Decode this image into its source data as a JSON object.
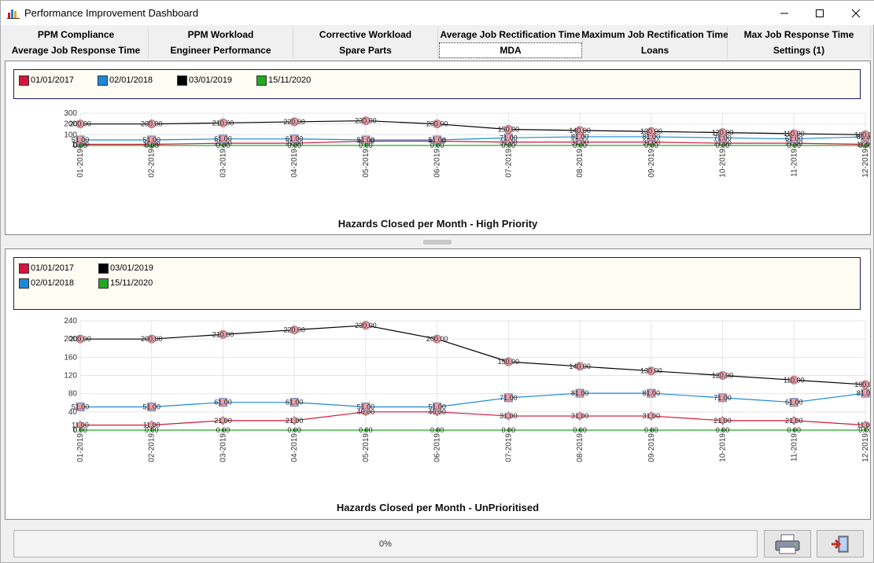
{
  "window": {
    "title": "Performance Improvement Dashboard"
  },
  "tabs": {
    "row1": [
      "PPM Compliance",
      "PPM Workload",
      "Corrective Workload",
      "Average Job Rectification Time",
      "Maximum Job Rectification Time",
      "Max Job Response Time"
    ],
    "row2": [
      "Average Job Response Time",
      "Engineer Performance",
      "Spare Parts",
      "MDA",
      "Loans",
      "Settings (1)"
    ],
    "active": "MDA"
  },
  "colors": {
    "s2017": "#d4163c",
    "s2018": "#1e88d8",
    "s2019": "#000000",
    "s2020": "#22aa22",
    "marker_fill": "#e8a0a8",
    "marker_edge": "#b07080"
  },
  "chart_data": [
    {
      "type": "line",
      "title": "Hazards Closed per Month - High Priority",
      "categories": [
        "01-2019",
        "02-2019",
        "03-2019",
        "04-2019",
        "05-2019",
        "06-2019",
        "07-2019",
        "08-2019",
        "09-2019",
        "10-2019",
        "11-2019",
        "12-2019"
      ],
      "ylim": [
        0,
        300
      ],
      "yticks": [
        "0",
        "100",
        "200",
        "300"
      ],
      "grid": true,
      "legend": {
        "placement": "top-left",
        "entries": [
          "01/01/2017",
          "02/01/2018",
          "03/01/2019",
          "15/11/2020"
        ]
      },
      "series": [
        {
          "name": "01/01/2017",
          "color": "#d4163c",
          "values": [
            11,
            11,
            21,
            21,
            40,
            40,
            31,
            31,
            31,
            21,
            21,
            11
          ]
        },
        {
          "name": "02/01/2018",
          "color": "#1e88d8",
          "values": [
            51,
            51,
            61,
            61,
            51,
            51,
            71,
            81,
            81,
            71,
            61,
            81
          ]
        },
        {
          "name": "03/01/2019",
          "color": "#000000",
          "values": [
            200,
            200,
            210,
            220,
            230,
            200,
            150,
            140,
            130,
            120,
            110,
            100
          ]
        },
        {
          "name": "15/11/2020",
          "color": "#22aa22",
          "values": [
            0,
            0,
            0,
            0,
            0,
            0,
            0,
            0,
            0,
            0,
            0,
            0
          ]
        }
      ]
    },
    {
      "type": "line",
      "title": "Hazards Closed per Month - UnPrioritised",
      "categories": [
        "01-2019",
        "02-2019",
        "03-2019",
        "04-2019",
        "05-2019",
        "06-2019",
        "07-2019",
        "08-2019",
        "09-2019",
        "10-2019",
        "11-2019",
        "12-2019"
      ],
      "ylim": [
        0,
        240
      ],
      "yticks": [
        "0",
        "40",
        "80",
        "120",
        "160",
        "200",
        "240"
      ],
      "grid": true,
      "legend": {
        "placement": "top-left",
        "entries": [
          "01/01/2017",
          "03/01/2019",
          "02/01/2018",
          "15/11/2020"
        ]
      },
      "series": [
        {
          "name": "01/01/2017",
          "color": "#d4163c",
          "values": [
            11,
            11,
            21,
            21,
            40,
            40,
            31,
            31,
            31,
            21,
            21,
            11
          ]
        },
        {
          "name": "02/01/2018",
          "color": "#1e88d8",
          "values": [
            51,
            51,
            61,
            61,
            51,
            51,
            71,
            81,
            81,
            71,
            61,
            81
          ]
        },
        {
          "name": "03/01/2019",
          "color": "#000000",
          "values": [
            200,
            200,
            210,
            220,
            230,
            200,
            150,
            140,
            130,
            120,
            110,
            100
          ]
        },
        {
          "name": "15/11/2020",
          "color": "#22aa22",
          "values": [
            0,
            0,
            0,
            0,
            0,
            0,
            0,
            0,
            0,
            0,
            0,
            0
          ]
        }
      ]
    }
  ],
  "status": {
    "progress_text": "0%",
    "progress_value": 0
  },
  "icons": {
    "print": "printer-icon",
    "exit": "exit-icon"
  }
}
